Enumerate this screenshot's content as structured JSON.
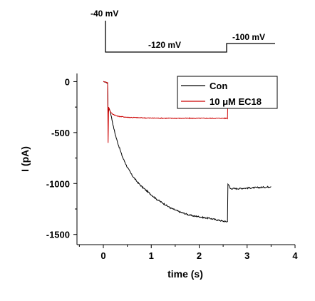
{
  "protocol": {
    "labels": [
      "-40 mV",
      "-120 mV",
      "-100 mV"
    ]
  },
  "chart_data": {
    "type": "line",
    "title": "",
    "xlabel": "time (s)",
    "ylabel": "I (pA)",
    "xlim": [
      -0.55,
      4.0
    ],
    "ylim": [
      -1600,
      80
    ],
    "xticks": [
      0,
      1,
      2,
      3,
      4
    ],
    "yticks": [
      0,
      -500,
      -1000,
      -1500
    ],
    "xtick_labels": [
      "0",
      "1",
      "2",
      "3",
      "4"
    ],
    "ytick_labels": [
      "0",
      "-500",
      "-1000",
      "-1500"
    ],
    "legend": {
      "position": "top-right",
      "boxed": true
    },
    "series": [
      {
        "name": "Con",
        "color": "#000000",
        "points": [
          [
            0.0,
            0
          ],
          [
            0.05,
            -5
          ],
          [
            0.09,
            -20
          ],
          [
            0.1,
            -320
          ],
          [
            0.12,
            -260
          ],
          [
            0.15,
            -300
          ],
          [
            0.2,
            -420
          ],
          [
            0.25,
            -520
          ],
          [
            0.3,
            -600
          ],
          [
            0.4,
            -740
          ],
          [
            0.5,
            -840
          ],
          [
            0.6,
            -920
          ],
          [
            0.7,
            -980
          ],
          [
            0.8,
            -1030
          ],
          [
            0.9,
            -1070
          ],
          [
            1.0,
            -1110
          ],
          [
            1.1,
            -1150
          ],
          [
            1.2,
            -1180
          ],
          [
            1.3,
            -1210
          ],
          [
            1.4,
            -1240
          ],
          [
            1.5,
            -1260
          ],
          [
            1.6,
            -1280
          ],
          [
            1.7,
            -1295
          ],
          [
            1.8,
            -1310
          ],
          [
            1.9,
            -1320
          ],
          [
            2.0,
            -1325
          ],
          [
            2.1,
            -1335
          ],
          [
            2.2,
            -1340
          ],
          [
            2.3,
            -1350
          ],
          [
            2.4,
            -1360
          ],
          [
            2.5,
            -1370
          ],
          [
            2.59,
            -1375
          ],
          [
            2.6,
            -1000
          ],
          [
            2.65,
            -1050
          ],
          [
            2.8,
            -1050
          ],
          [
            3.0,
            -1045
          ],
          [
            3.2,
            -1040
          ],
          [
            3.4,
            -1035
          ],
          [
            3.5,
            -1030
          ]
        ]
      },
      {
        "name": "10 μM EC18",
        "color": "#cc0000",
        "points": [
          [
            0.0,
            0
          ],
          [
            0.05,
            -5
          ],
          [
            0.09,
            -10
          ],
          [
            0.1,
            -600
          ],
          [
            0.11,
            -250
          ],
          [
            0.15,
            -300
          ],
          [
            0.2,
            -320
          ],
          [
            0.3,
            -340
          ],
          [
            0.5,
            -350
          ],
          [
            0.8,
            -355
          ],
          [
            1.0,
            -358
          ],
          [
            1.5,
            -360
          ],
          [
            2.0,
            -360
          ],
          [
            2.3,
            -360
          ],
          [
            2.59,
            -360
          ],
          [
            2.6,
            -160
          ],
          [
            2.62,
            -215
          ],
          [
            2.8,
            -210
          ],
          [
            3.0,
            -210
          ],
          [
            3.2,
            -208
          ],
          [
            3.5,
            -205
          ]
        ]
      }
    ]
  }
}
